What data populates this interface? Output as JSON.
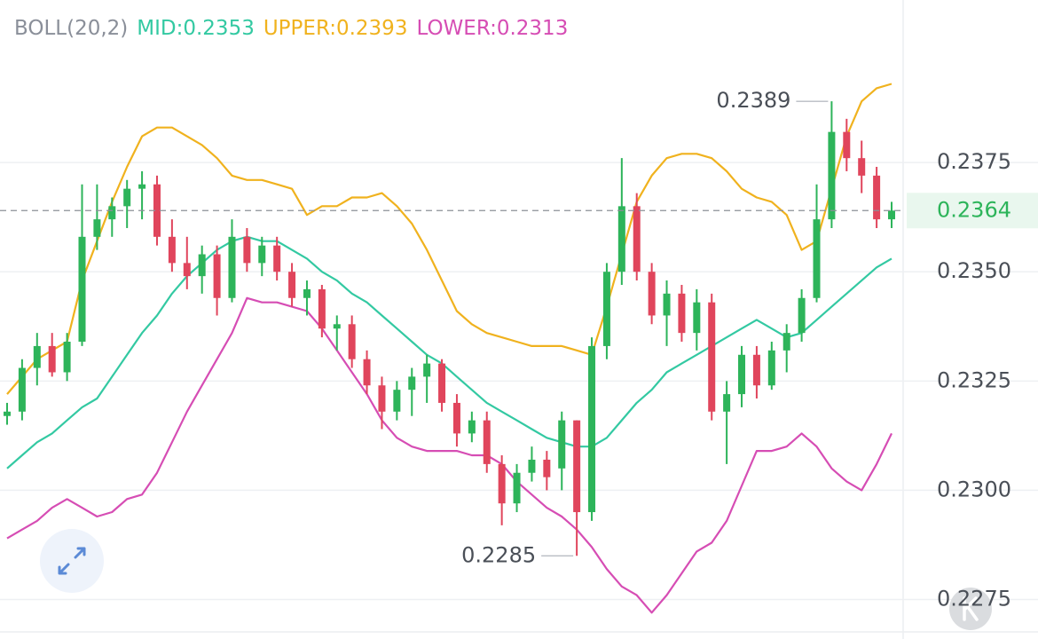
{
  "chart_data": {
    "type": "candlestick",
    "title": "BOLL(20,2)",
    "ylim": [
      0.2268,
      0.24
    ],
    "yticks": [
      0.2375,
      {
        "value": 0.235,
        "label": "0.2350"
      },
      0.2325,
      {
        "value": 0.23,
        "label": "0.2300"
      },
      0.2275
    ],
    "grid": true,
    "up_color": "#2db45a",
    "down_color": "#e0455c",
    "last_price": 0.2364,
    "annotations": [
      0.2389,
      0.2285
    ],
    "open": [
      0.2317,
      0.2318,
      0.2328,
      0.2333,
      0.2327,
      0.2334,
      0.2358,
      0.2362,
      0.2365,
      0.2369,
      0.237,
      0.2358,
      0.2352,
      0.2349,
      0.2354,
      0.2344,
      0.2358,
      0.2352,
      0.2356,
      0.235,
      0.2344,
      0.2346,
      0.2337,
      0.2338,
      0.233,
      0.2324,
      0.2318,
      0.2323,
      0.2326,
      0.2329,
      0.232,
      0.2313,
      0.2316,
      0.2306,
      0.2297,
      0.2304,
      0.2307,
      0.2305,
      0.2316,
      0.2295,
      0.2333,
      0.235,
      0.2365,
      0.235,
      0.234,
      0.2345,
      0.2336,
      0.2343,
      0.2318,
      0.2322,
      0.2331,
      0.2324,
      0.2332,
      0.2336,
      0.2344,
      0.2362,
      0.2382,
      0.2376,
      0.2372,
      0.2362
    ],
    "high": [
      0.232,
      0.233,
      0.2336,
      0.2336,
      0.2336,
      0.237,
      0.237,
      0.2367,
      0.2371,
      0.2373,
      0.2372,
      0.2362,
      0.2358,
      0.2356,
      0.2356,
      0.2362,
      0.236,
      0.2358,
      0.2358,
      0.2352,
      0.2348,
      0.2347,
      0.234,
      0.234,
      0.2332,
      0.2326,
      0.2325,
      0.2328,
      0.2331,
      0.233,
      0.2322,
      0.2318,
      0.2318,
      0.2308,
      0.2306,
      0.231,
      0.2309,
      0.2318,
      0.2316,
      0.2335,
      0.2352,
      0.2376,
      0.2368,
      0.2352,
      0.2348,
      0.2347,
      0.2346,
      0.2345,
      0.2325,
      0.2333,
      0.2333,
      0.2334,
      0.2338,
      0.2346,
      0.237,
      0.2389,
      0.2385,
      0.238,
      0.2374,
      0.2366
    ],
    "low": [
      0.2315,
      0.2316,
      0.2324,
      0.2326,
      0.2325,
      0.2333,
      0.2355,
      0.2358,
      0.236,
      0.2362,
      0.2356,
      0.235,
      0.2346,
      0.2345,
      0.234,
      0.2343,
      0.235,
      0.2349,
      0.2348,
      0.2342,
      0.234,
      0.2335,
      0.2332,
      0.2328,
      0.2322,
      0.2314,
      0.2316,
      0.2317,
      0.232,
      0.2318,
      0.231,
      0.2311,
      0.2304,
      0.2292,
      0.2295,
      0.2302,
      0.23,
      0.23,
      0.2285,
      0.2293,
      0.233,
      0.2347,
      0.2348,
      0.2338,
      0.2333,
      0.2334,
      0.2332,
      0.2316,
      0.2306,
      0.2319,
      0.2321,
      0.2323,
      0.2327,
      0.2334,
      0.2343,
      0.236,
      0.2373,
      0.2368,
      0.236,
      0.236
    ],
    "close": [
      0.2318,
      0.2328,
      0.2333,
      0.2327,
      0.2334,
      0.2358,
      0.2362,
      0.2365,
      0.2369,
      0.237,
      0.2358,
      0.2352,
      0.2349,
      0.2354,
      0.2344,
      0.2358,
      0.2352,
      0.2356,
      0.235,
      0.2344,
      0.2346,
      0.2337,
      0.2338,
      0.233,
      0.2324,
      0.2318,
      0.2323,
      0.2326,
      0.2329,
      0.232,
      0.2313,
      0.2316,
      0.2306,
      0.2297,
      0.2304,
      0.2307,
      0.2303,
      0.2316,
      0.2295,
      0.2333,
      0.235,
      0.2365,
      0.235,
      0.234,
      0.2345,
      0.2336,
      0.2343,
      0.2318,
      0.2322,
      0.2331,
      0.2324,
      0.2332,
      0.2336,
      0.2344,
      0.2362,
      0.2382,
      0.2376,
      0.2372,
      0.2362,
      0.2364
    ],
    "series": [
      {
        "name": "MID:0.2353",
        "color": "#33c9a2",
        "values": [
          0.2305,
          0.2308,
          0.2311,
          0.2313,
          0.2316,
          0.2319,
          0.2321,
          0.2326,
          0.2331,
          0.2336,
          0.234,
          0.2345,
          0.2349,
          0.2352,
          0.2355,
          0.2357,
          0.2358,
          0.2357,
          0.2357,
          0.2355,
          0.2353,
          0.235,
          0.2348,
          0.2345,
          0.2343,
          0.234,
          0.2337,
          0.2334,
          0.2331,
          0.2329,
          0.2326,
          0.2323,
          0.232,
          0.2318,
          0.2316,
          0.2314,
          0.2312,
          0.2311,
          0.231,
          0.231,
          0.2312,
          0.2316,
          0.232,
          0.2323,
          0.2327,
          0.2329,
          0.2331,
          0.2333,
          0.2335,
          0.2337,
          0.2339,
          0.2337,
          0.2335,
          0.2336,
          0.2339,
          0.2342,
          0.2345,
          0.2348,
          0.2351,
          0.2353
        ]
      },
      {
        "name": "UPPER:0.2393",
        "color": "#f0b21e",
        "values": [
          0.2322,
          0.2326,
          0.233,
          0.2332,
          0.2334,
          0.2348,
          0.2357,
          0.2366,
          0.2374,
          0.2381,
          0.2383,
          0.2383,
          0.2381,
          0.2379,
          0.2376,
          0.2372,
          0.2371,
          0.2371,
          0.237,
          0.2369,
          0.2363,
          0.2365,
          0.2365,
          0.2367,
          0.2367,
          0.2368,
          0.2365,
          0.2361,
          0.2355,
          0.2348,
          0.2341,
          0.2338,
          0.2336,
          0.2335,
          0.2334,
          0.2333,
          0.2333,
          0.2333,
          0.2332,
          0.2331,
          0.2342,
          0.2354,
          0.2366,
          0.2372,
          0.2376,
          0.2377,
          0.2377,
          0.2376,
          0.2373,
          0.2369,
          0.2367,
          0.2366,
          0.2363,
          0.2355,
          0.2357,
          0.2369,
          0.2381,
          0.2389,
          0.2392,
          0.2393
        ]
      },
      {
        "name": "LOWER:0.2313",
        "color": "#d64db4",
        "values": [
          0.2289,
          0.2291,
          0.2293,
          0.2296,
          0.2298,
          0.2296,
          0.2294,
          0.2295,
          0.2298,
          0.2299,
          0.2304,
          0.2311,
          0.2318,
          0.2324,
          0.233,
          0.2336,
          0.2344,
          0.2343,
          0.2343,
          0.2342,
          0.2341,
          0.2337,
          0.2332,
          0.2327,
          0.2322,
          0.2316,
          0.2312,
          0.231,
          0.2309,
          0.2309,
          0.2309,
          0.2308,
          0.2308,
          0.2306,
          0.2302,
          0.2299,
          0.2296,
          0.2294,
          0.2291,
          0.2287,
          0.2282,
          0.2278,
          0.2276,
          0.2272,
          0.2276,
          0.2281,
          0.2286,
          0.2288,
          0.2293,
          0.2301,
          0.2309,
          0.2309,
          0.231,
          0.2313,
          0.231,
          0.2305,
          0.2302,
          0.23,
          0.2306,
          0.2313
        ]
      }
    ]
  }
}
